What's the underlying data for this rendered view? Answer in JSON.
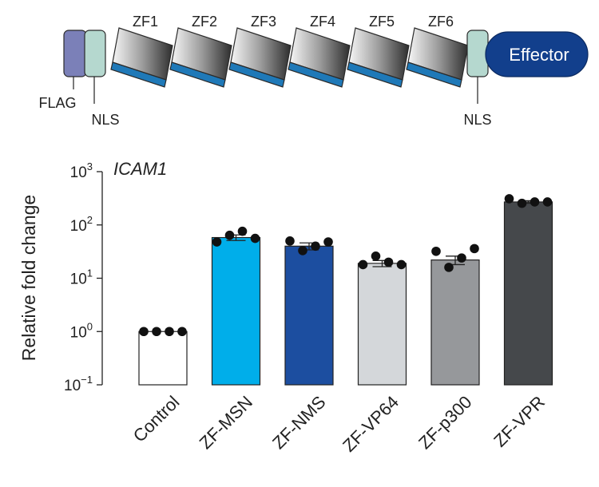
{
  "construct": {
    "zinc_fingers": [
      "ZF1",
      "ZF2",
      "ZF3",
      "ZF4",
      "ZF5",
      "ZF6"
    ],
    "flag_label": "FLAG",
    "nls_left_label": "NLS",
    "nls_right_label": "NLS",
    "effector_label": "Effector",
    "colors": {
      "flag": "#7b80b8",
      "nls": "#b5d8cf",
      "effector": "#123f8c",
      "zf_stripe": "#1f79b8"
    }
  },
  "chart_data": {
    "type": "bar",
    "title": "ICAM1",
    "ylabel": "Relative fold change",
    "xlabel": "",
    "yscale": "log",
    "ylim": [
      0.1,
      1000
    ],
    "yticks": [
      {
        "value": 0.1,
        "base": "10",
        "exp": "−1"
      },
      {
        "value": 1,
        "base": "10",
        "exp": "0"
      },
      {
        "value": 10,
        "base": "10",
        "exp": "1"
      },
      {
        "value": 100,
        "base": "10",
        "exp": "2"
      },
      {
        "value": 1000,
        "base": "10",
        "exp": "3"
      }
    ],
    "categories": [
      "Control",
      "ZF-MSN",
      "ZF-NMS",
      "ZF-VP64",
      "ZF-p300",
      "ZF-VPR"
    ],
    "values": [
      1.0,
      58,
      40,
      19,
      22,
      270
    ],
    "errors": [
      0,
      7,
      6,
      2.5,
      4,
      15
    ],
    "points": [
      [
        1.0,
        1.0,
        1.0,
        1.0
      ],
      [
        48,
        64,
        76,
        56
      ],
      [
        50,
        33,
        40,
        48
      ],
      [
        18,
        26,
        20,
        18
      ],
      [
        32,
        16,
        24,
        36
      ],
      [
        310,
        255,
        270,
        270
      ]
    ],
    "colors": [
      "#ffffff",
      "#00aeea",
      "#1c4ea0",
      "#d4d7da",
      "#96989b",
      "#45484b"
    ]
  }
}
